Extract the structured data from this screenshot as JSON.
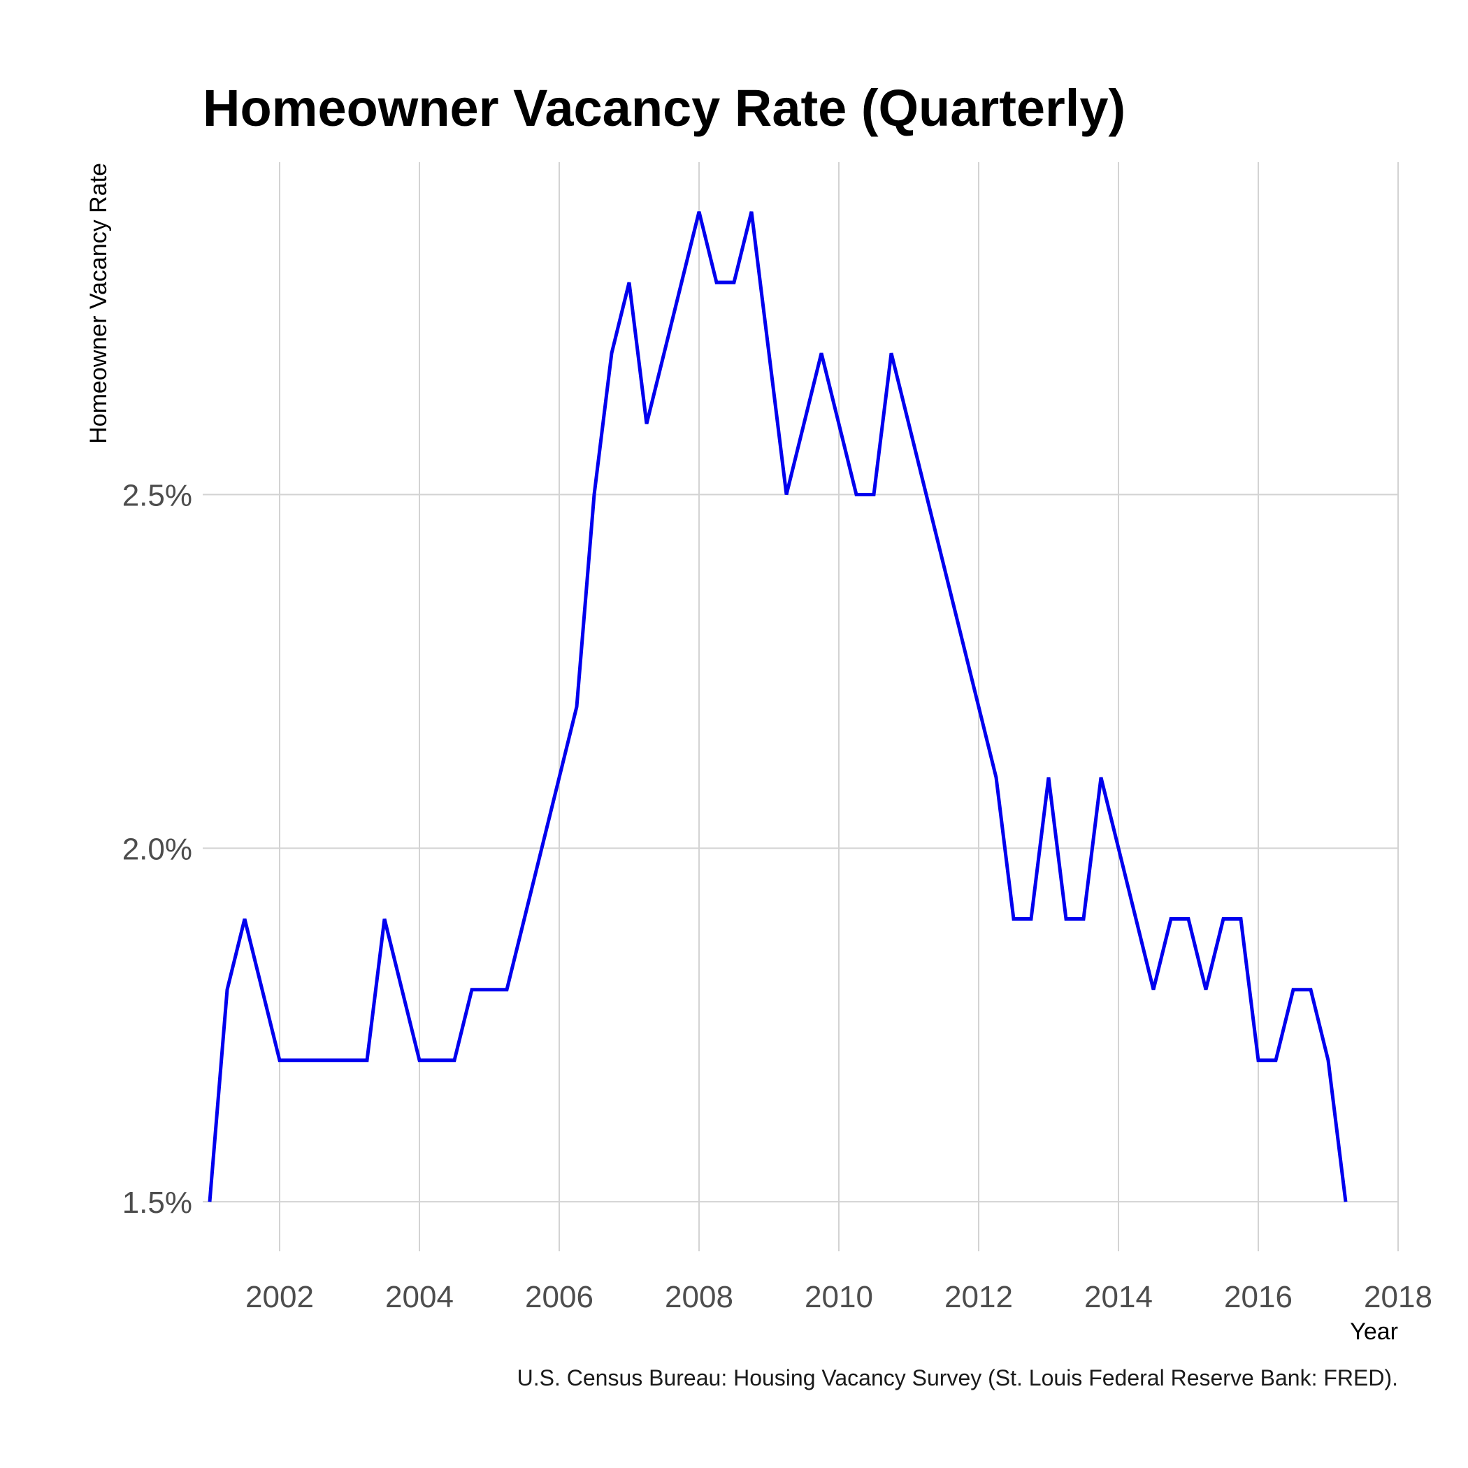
{
  "chart_data": {
    "type": "line",
    "title": "Homeowner Vacancy Rate (Quarterly)",
    "ylabel": "Homeowner Vacancy Rate",
    "xlabel": "Year",
    "caption": "U.S. Census Bureau: Housing Vacancy Survey (St. Louis Federal Reserve Bank: FRED).",
    "xlim": [
      2000.9,
      2018.0
    ],
    "ylim": [
      1.43,
      2.97
    ],
    "x_ticks": [
      2002,
      2004,
      2006,
      2008,
      2010,
      2012,
      2014,
      2016,
      2018
    ],
    "x_tick_labels": [
      "2002",
      "2004",
      "2006",
      "2008",
      "2010",
      "2012",
      "2014",
      "2016",
      "2018"
    ],
    "y_ticks": [
      1.5,
      2.0,
      2.5
    ],
    "y_tick_labels": [
      "1.5%",
      "2.0%",
      "2.5%"
    ],
    "grid": true,
    "line_color": "#0000ee",
    "series": [
      {
        "x": [
          2001.0,
          2001.25,
          2001.5,
          2001.75,
          2002.0,
          2002.25,
          2002.5,
          2002.75,
          2003.0,
          2003.25,
          2003.5,
          2003.75,
          2004.0,
          2004.25,
          2004.5,
          2004.75,
          2005.0,
          2005.25,
          2005.5,
          2005.75,
          2006.0,
          2006.25,
          2006.5,
          2006.75,
          2007.0,
          2007.25,
          2007.5,
          2007.75,
          2008.0,
          2008.25,
          2008.5,
          2008.75,
          2009.0,
          2009.25,
          2009.5,
          2009.75,
          2010.0,
          2010.25,
          2010.5,
          2010.75,
          2011.0,
          2011.25,
          2011.5,
          2011.75,
          2012.0,
          2012.25,
          2012.5,
          2012.75,
          2013.0,
          2013.25,
          2013.5,
          2013.75,
          2014.0,
          2014.25,
          2014.5,
          2014.75,
          2015.0,
          2015.25,
          2015.5,
          2015.75,
          2016.0,
          2016.25,
          2016.5,
          2016.75,
          2017.0,
          2017.25
        ],
        "values": [
          1.5,
          1.8,
          1.9,
          1.8,
          1.7,
          1.7,
          1.7,
          1.7,
          1.7,
          1.7,
          1.9,
          1.8,
          1.7,
          1.7,
          1.7,
          1.8,
          1.8,
          1.8,
          1.9,
          2.0,
          2.1,
          2.2,
          2.5,
          2.7,
          2.8,
          2.6,
          2.7,
          2.8,
          2.9,
          2.8,
          2.8,
          2.9,
          2.7,
          2.5,
          2.6,
          2.7,
          2.6,
          2.5,
          2.5,
          2.7,
          2.6,
          2.5,
          2.4,
          2.3,
          2.2,
          2.1,
          1.9,
          1.9,
          2.1,
          1.9,
          1.9,
          2.1,
          2.0,
          1.9,
          1.8,
          1.9,
          1.9,
          1.8,
          1.9,
          1.9,
          1.7,
          1.7,
          1.8,
          1.8,
          1.7,
          1.5
        ]
      }
    ]
  }
}
